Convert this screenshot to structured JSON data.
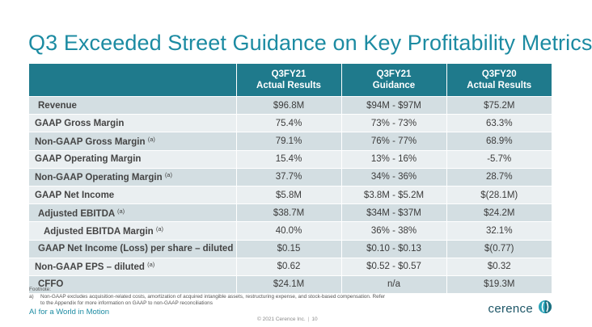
{
  "title": "Q3 Exceeded Street Guidance on Key Profitability Metrics",
  "table": {
    "headers": [
      {
        "line1": "",
        "line2": ""
      },
      {
        "line1": "Q3FY21",
        "line2": "Actual Results"
      },
      {
        "line1": "Q3FY21",
        "line2": "Guidance"
      },
      {
        "line1": "Q3FY20",
        "line2": "Actual Results"
      }
    ],
    "rows": [
      {
        "label": "Revenue",
        "note": "",
        "values": [
          "$96.8M",
          "$94M - $97M",
          "$75.2M"
        ]
      },
      {
        "label": "GAAP Gross Margin",
        "note": "",
        "values": [
          "75.4%",
          "73% - 73%",
          "63.3%"
        ]
      },
      {
        "label": "Non-GAAP Gross Margin",
        "note": "(a)",
        "values": [
          "79.1%",
          "76% - 77%",
          "68.9%"
        ]
      },
      {
        "label": "GAAP Operating Margin",
        "note": "",
        "values": [
          "15.4%",
          "13% - 16%",
          "-5.7%"
        ]
      },
      {
        "label": "Non-GAAP Operating Margin",
        "note": "(a)",
        "values": [
          "37.7%",
          "34% - 36%",
          "28.7%"
        ]
      },
      {
        "label": "GAAP Net Income",
        "note": "",
        "values": [
          "$5.8M",
          "$3.8M - $5.2M",
          "$(28.1M)"
        ]
      },
      {
        "label": "Adjusted EBITDA",
        "note": "(a)",
        "values": [
          "$38.7M",
          "$34M - $37M",
          "$24.2M"
        ]
      },
      {
        "label": "Adjusted EBITDA Margin",
        "note": "(a)",
        "values": [
          "40.0%",
          "36% - 38%",
          "32.1%"
        ]
      },
      {
        "label": "GAAP Net Income (Loss) per share – diluted",
        "note": "",
        "values": [
          "$0.15",
          "$0.10 - $0.13",
          "$(0.77)"
        ]
      },
      {
        "label": "Non-GAAP EPS – diluted",
        "note": "(a)",
        "values": [
          "$0.62",
          "$0.52 - $0.57",
          "$0.32"
        ]
      },
      {
        "label": "CFFO",
        "note": "",
        "values": [
          "$24.1M",
          "n/a",
          "$19.3M"
        ]
      }
    ]
  },
  "footnote": {
    "heading": "Footnote:",
    "marker": "a)",
    "line1": "Non-GAAP excludes acquisition-related costs, amortization of acquired intangible assets, restructuring expense, and stock-based compensation.    Refer",
    "line2": "to the Appendix for more information on GAAP to non-GAAP reconciliations"
  },
  "tagline": "AI for a World in Motion",
  "copyright": "© 2021 Cerence Inc.",
  "page_number": "10",
  "logo": {
    "text": "cerence",
    "icon": "cerence-logo-icon"
  },
  "colors": {
    "accent": "#1c8ba2",
    "header_bg": "#1f7a8c",
    "row_dark": "#d3dee2",
    "row_light": "#eaeff1"
  }
}
